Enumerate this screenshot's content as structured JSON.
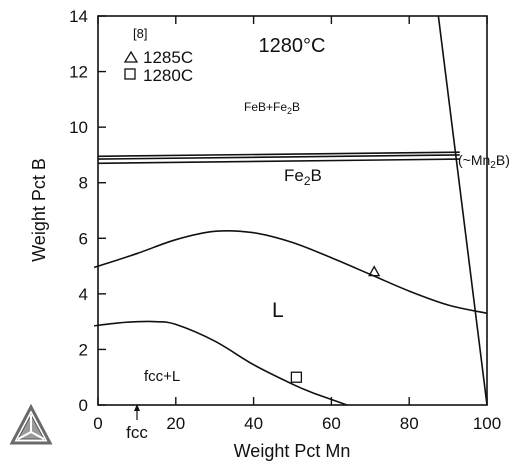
{
  "chart_data": {
    "type": "line",
    "title": "1280°C",
    "xlabel": "Weight Pct Mn",
    "ylabel": "Weight Pct B",
    "xlim": [
      0,
      100
    ],
    "ylim": [
      0,
      14
    ],
    "x_ticks": [
      0,
      20,
      40,
      60,
      80,
      100
    ],
    "y_ticks": [
      0,
      2,
      4,
      6,
      8,
      10,
      12,
      14
    ],
    "grid": false,
    "legend": {
      "position": "top-left",
      "reference": "[8]",
      "entries": [
        {
          "marker": "triangle",
          "label": "1285C"
        },
        {
          "marker": "square",
          "label": "1280C"
        }
      ]
    },
    "series": [
      {
        "x": [
          -1,
          10,
          20,
          30,
          40,
          50,
          60,
          70,
          80,
          90,
          100
        ],
        "y": [
          4.95,
          5.45,
          5.95,
          6.25,
          6.2,
          5.85,
          5.3,
          4.7,
          4.1,
          3.6,
          3.3
        ]
      },
      {
        "x": [
          -1,
          5,
          10,
          15,
          20,
          30,
          40,
          50,
          55,
          60,
          64
        ],
        "y": [
          2.85,
          2.95,
          3.0,
          3.0,
          2.9,
          2.3,
          1.45,
          0.75,
          0.45,
          0.2,
          0.0
        ]
      },
      {
        "x": [
          0,
          93
        ],
        "y": [
          8.95,
          9.1
        ]
      },
      {
        "x": [
          0,
          93
        ],
        "y": [
          8.85,
          9.0
        ]
      },
      {
        "x": [
          0,
          93
        ],
        "y": [
          8.7,
          8.85
        ]
      },
      {
        "x": [
          87.5,
          100
        ],
        "y": [
          14,
          0
        ]
      }
    ],
    "points": [
      {
        "marker": "triangle",
        "x": 71,
        "y": 4.8
      },
      {
        "marker": "square",
        "x": 51,
        "y": 1.0
      }
    ],
    "annotations": {
      "phase_top": "FeB+Fe",
      "phase_top_sub": "2",
      "phase_top_end": "B",
      "phase_fe2b": "Fe",
      "phase_fe2b_sub": "2",
      "phase_fe2b_end": "B",
      "mn2b": "(~Mn",
      "mn2b_sub": "2",
      "mn2b_end": "B)",
      "liquid": "L",
      "fcc_l": "fcc+L",
      "fcc_label": "fcc"
    }
  },
  "logo": {
    "name": "thermo-calc-logo-icon"
  }
}
